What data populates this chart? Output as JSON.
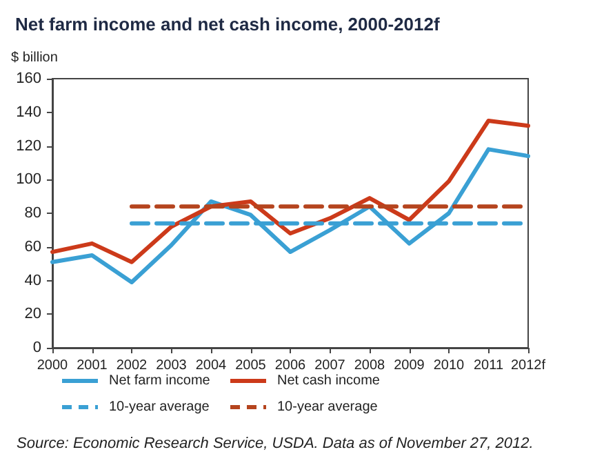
{
  "chart_data": {
    "type": "line",
    "title": "Net farm income and net cash income, 2000-2012f",
    "ylabel": "$ billion",
    "categories": [
      "2000",
      "2001",
      "2002",
      "2003",
      "2004",
      "2005",
      "2006",
      "2007",
      "2008",
      "2009",
      "2010",
      "2011",
      "2012f"
    ],
    "series": [
      {
        "name": "Net farm income",
        "color": "#3aa0d4",
        "values": [
          51,
          55,
          39,
          61,
          87,
          79,
          57,
          70,
          84,
          62,
          80,
          118,
          114
        ]
      },
      {
        "name": "Net cash income",
        "color": "#cc3a1a",
        "values": [
          57,
          62,
          51,
          72,
          84,
          87,
          68,
          77,
          89,
          76,
          99,
          135,
          132
        ]
      },
      {
        "name": "10-year average",
        "color": "#3aa0d4",
        "line_style": "dashed",
        "values": [
          null,
          null,
          74,
          74,
          74,
          74,
          74,
          74,
          74,
          74,
          74,
          74,
          74
        ]
      },
      {
        "name": "10-year average",
        "color": "#b5441e",
        "line_style": "dashed",
        "values": [
          null,
          null,
          84,
          84,
          84,
          84,
          84,
          84,
          84,
          84,
          84,
          84,
          84
        ]
      }
    ],
    "ylim": [
      0,
      160
    ],
    "yticks": [
      0,
      20,
      40,
      60,
      80,
      100,
      120,
      140,
      160
    ],
    "grid": false,
    "legend": "bottom",
    "marker": "none",
    "annotations": [
      "Source: Economic Research Service, USDA. Data as of November 27, 2012."
    ]
  }
}
